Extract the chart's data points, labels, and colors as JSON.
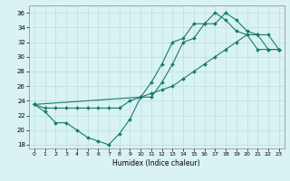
{
  "title": "",
  "xlabel": "Humidex (Indice chaleur)",
  "bg_color": "#d9f2f2",
  "line_color": "#1a7a6e",
  "xlim": [
    -0.5,
    23.5
  ],
  "ylim": [
    17.5,
    37.0
  ],
  "xticks": [
    0,
    1,
    2,
    3,
    4,
    5,
    6,
    7,
    8,
    9,
    10,
    11,
    12,
    13,
    14,
    15,
    16,
    17,
    18,
    19,
    20,
    21,
    22,
    23
  ],
  "yticks": [
    18,
    20,
    22,
    24,
    26,
    28,
    30,
    32,
    34,
    36
  ],
  "line1_x": [
    0,
    1,
    2,
    3,
    4,
    5,
    6,
    7,
    8,
    9,
    10,
    11,
    12,
    13,
    14,
    15,
    16,
    17,
    18,
    19,
    20,
    21,
    22,
    23
  ],
  "line1_y": [
    23.5,
    22.5,
    21.0,
    21.0,
    20.0,
    19.0,
    18.5,
    18.0,
    19.5,
    21.5,
    24.5,
    24.5,
    26.5,
    29.0,
    32.0,
    32.5,
    34.5,
    34.5,
    36.0,
    35.0,
    33.5,
    33.0,
    31.0,
    31.0
  ],
  "line2_x": [
    0,
    1,
    2,
    3,
    4,
    5,
    6,
    7,
    8,
    9,
    10,
    11,
    12,
    13,
    14,
    15,
    16,
    17,
    18,
    19,
    20,
    21,
    22,
    23
  ],
  "line2_y": [
    23.5,
    23.0,
    23.0,
    23.0,
    23.0,
    23.0,
    23.0,
    23.0,
    23.0,
    24.0,
    24.5,
    25.0,
    25.5,
    26.0,
    27.0,
    28.0,
    29.0,
    30.0,
    31.0,
    32.0,
    33.0,
    33.0,
    33.0,
    31.0
  ],
  "line3_x": [
    0,
    10,
    11,
    12,
    13,
    14,
    15,
    16,
    17,
    18,
    19,
    20,
    21,
    22,
    23
  ],
  "line3_y": [
    23.5,
    24.5,
    26.5,
    29.0,
    32.0,
    32.5,
    34.5,
    34.5,
    36.0,
    35.0,
    33.5,
    33.0,
    31.0,
    31.0,
    31.0
  ]
}
